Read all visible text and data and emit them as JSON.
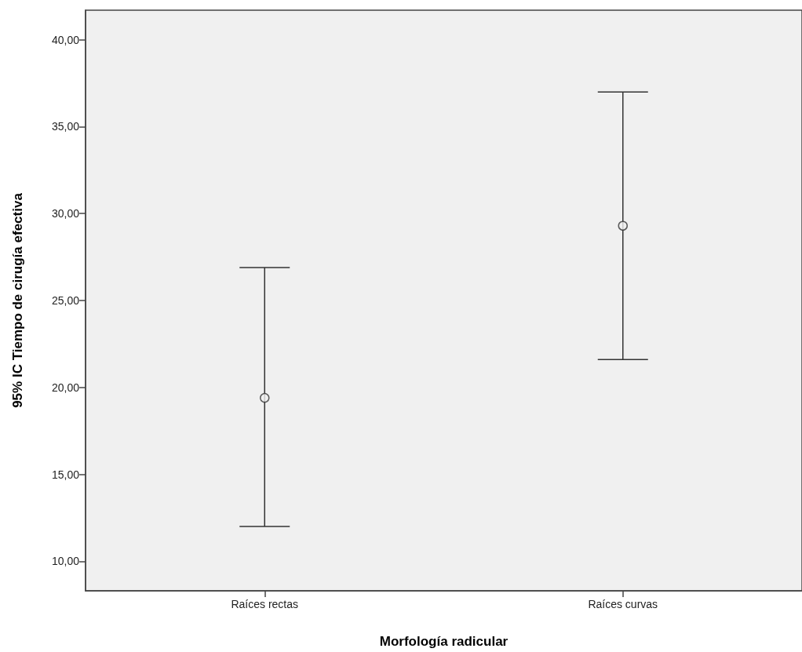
{
  "chart_data": {
    "type": "scatter",
    "xlabel": "Morfología radicular",
    "ylabel": "95% IC Tiempo de cirugía efectiva",
    "categories": [
      "Raíces rectas",
      "Raíces curvas"
    ],
    "color": "#333333",
    "values": [
      19.4,
      29.3
    ],
    "errors": [
      [
        12.0,
        26.9
      ],
      [
        21.6,
        37.0
      ]
    ],
    "marker": "circle",
    "grid": false,
    "ylim": [
      8.3,
      41.7
    ],
    "yticks": [
      {
        "value": 10,
        "label": "10,00"
      },
      {
        "value": 15,
        "label": "15,00"
      },
      {
        "value": 20,
        "label": "20,00"
      },
      {
        "value": 25,
        "label": "25,00"
      },
      {
        "value": 30,
        "label": "30,00"
      },
      {
        "value": 35,
        "label": "35,00"
      },
      {
        "value": 40,
        "label": "40,00"
      }
    ]
  }
}
